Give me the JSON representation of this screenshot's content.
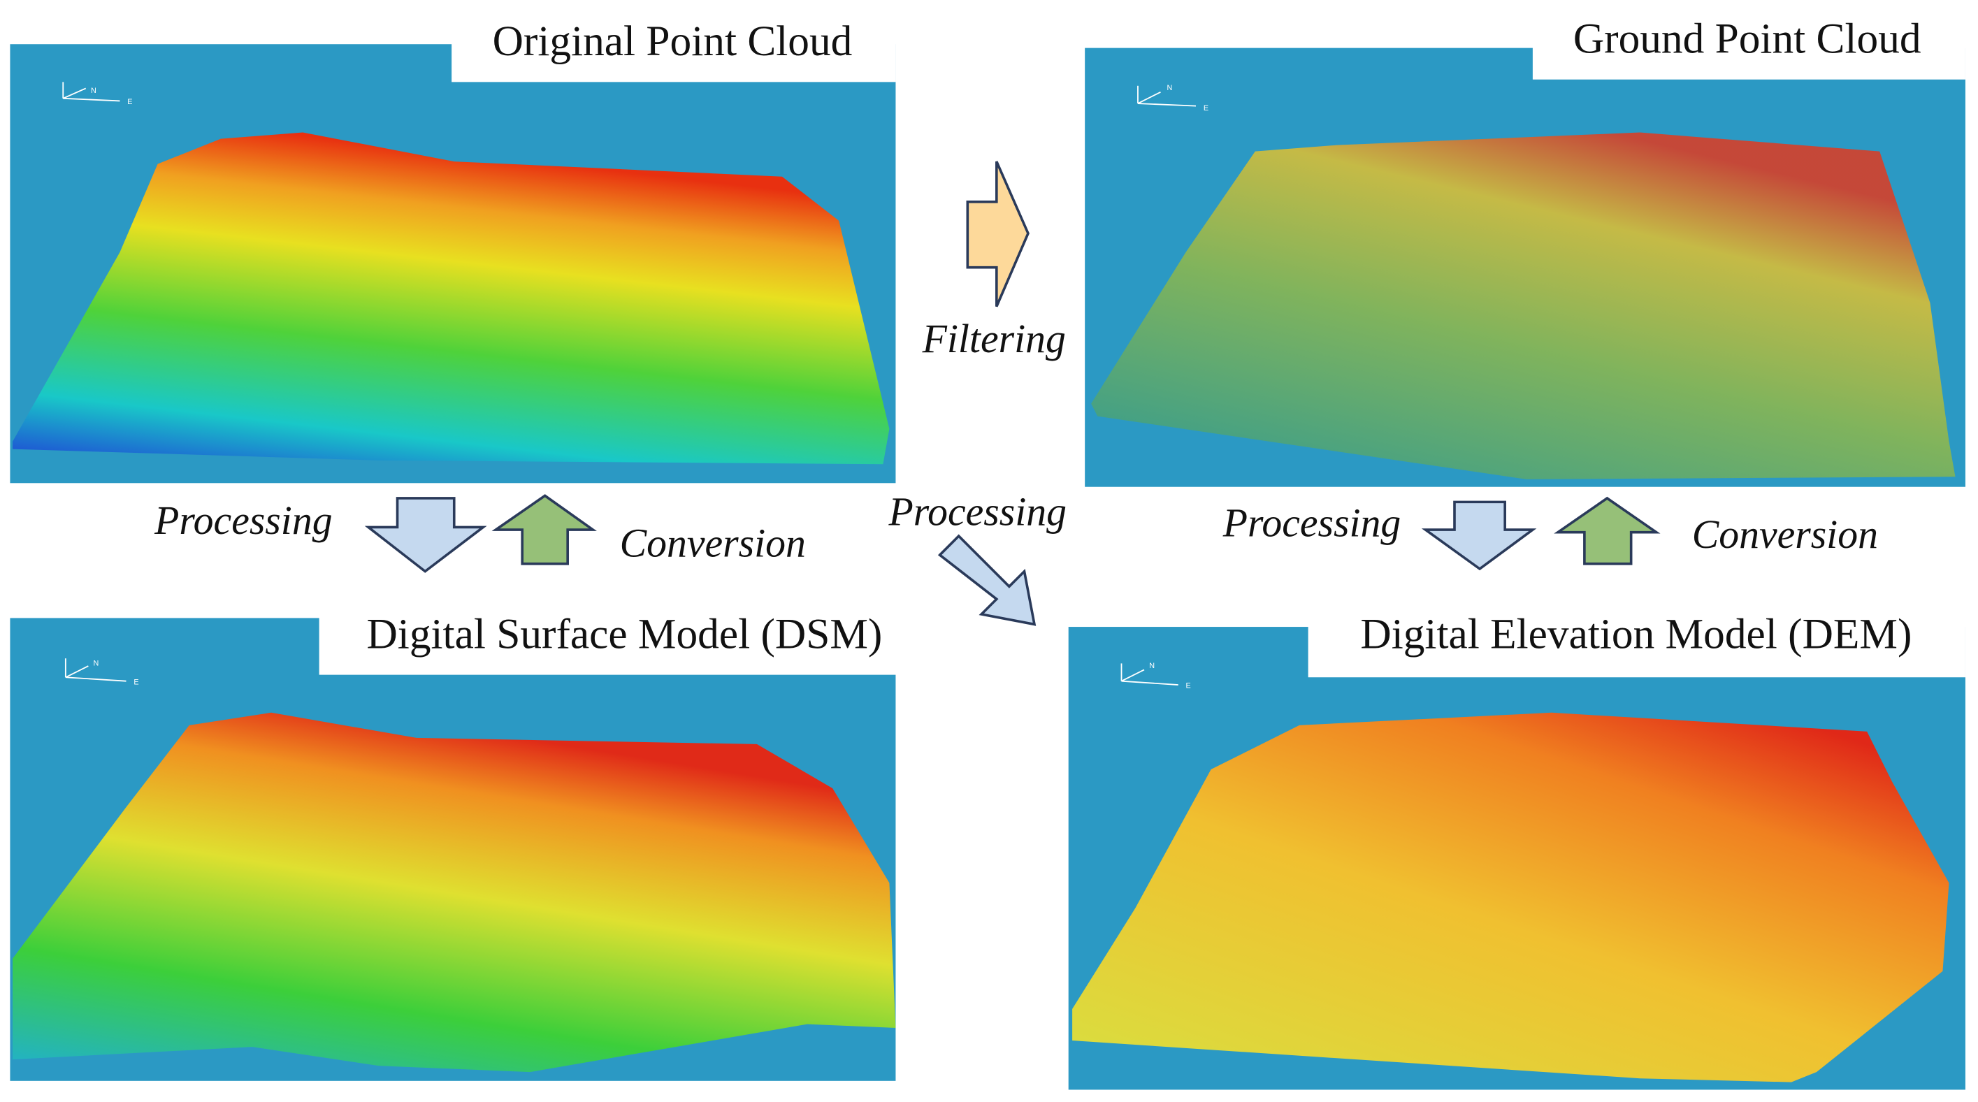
{
  "panels": [
    {
      "title": "Original Point Cloud"
    },
    {
      "title": "Ground Point Cloud"
    },
    {
      "title": "Digital Surface Model (DSM)"
    },
    {
      "title": "Digital Elevation Model (DEM)"
    }
  ],
  "labels": {
    "filtering": "Filtering",
    "processing_left": "Processing",
    "conversion_left": "Conversion",
    "processing_middle": "Processing",
    "processing_right": "Processing",
    "conversion_right": "Conversion"
  },
  "compass": {
    "north": "N",
    "east": "E"
  }
}
